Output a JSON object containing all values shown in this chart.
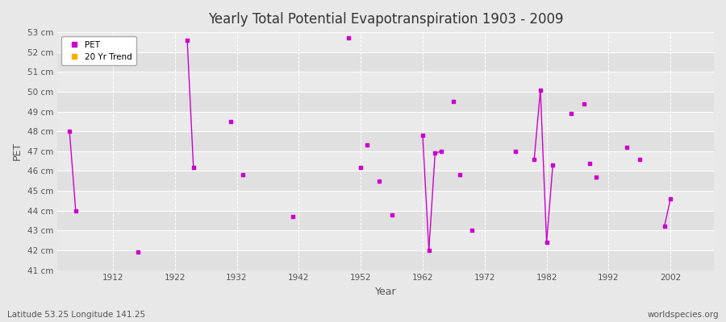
{
  "title": "Yearly Total Potential Evapotranspiration 1903 - 2009",
  "xlabel": "Year",
  "ylabel": "PET",
  "xlim": [
    1903,
    2009
  ],
  "ylim": [
    41,
    53
  ],
  "ytick_labels": [
    "41 cm",
    "42 cm",
    "43 cm",
    "44 cm",
    "45 cm",
    "46 cm",
    "47 cm",
    "48 cm",
    "49 cm",
    "50 cm",
    "51 cm",
    "52 cm",
    "53 cm"
  ],
  "ytick_values": [
    41,
    42,
    43,
    44,
    45,
    46,
    47,
    48,
    49,
    50,
    51,
    52,
    53
  ],
  "xtick_values": [
    1912,
    1922,
    1932,
    1942,
    1952,
    1962,
    1972,
    1982,
    1992,
    2002
  ],
  "pet_color": "#cc00cc",
  "trend_color": "#ffaa00",
  "bg_light": "#e8e8e8",
  "bg_dark": "#d8d8d8",
  "grid_vline_color": "#cccccc",
  "subtitle_left": "Latitude 53.25 Longitude 141.25",
  "subtitle_right": "worldspecies.org",
  "pet_data": [
    [
      1905,
      48.0
    ],
    [
      1906,
      44.0
    ],
    [
      1916,
      41.9
    ],
    [
      1924,
      52.6
    ],
    [
      1925,
      46.2
    ],
    [
      1931,
      48.5
    ],
    [
      1933,
      45.8
    ],
    [
      1941,
      43.7
    ],
    [
      1950,
      52.7
    ],
    [
      1952,
      46.2
    ],
    [
      1953,
      47.3
    ],
    [
      1955,
      45.5
    ],
    [
      1957,
      43.8
    ],
    [
      1962,
      47.8
    ],
    [
      1963,
      42.0
    ],
    [
      1964,
      46.9
    ],
    [
      1965,
      47.0
    ],
    [
      1967,
      49.5
    ],
    [
      1968,
      45.8
    ],
    [
      1970,
      43.0
    ],
    [
      1977,
      47.0
    ],
    [
      1980,
      46.6
    ],
    [
      1981,
      50.1
    ],
    [
      1982,
      42.4
    ],
    [
      1983,
      46.3
    ],
    [
      1986,
      48.9
    ],
    [
      1988,
      49.4
    ],
    [
      1989,
      46.4
    ],
    [
      1990,
      45.7
    ],
    [
      1995,
      47.2
    ],
    [
      1997,
      46.6
    ],
    [
      2001,
      43.2
    ],
    [
      2002,
      44.6
    ]
  ],
  "connected_segments": [
    [
      [
        1905,
        48.0
      ],
      [
        1906,
        44.0
      ]
    ],
    [
      [
        1924,
        52.6
      ],
      [
        1925,
        46.2
      ]
    ],
    [
      [
        1962,
        47.8
      ],
      [
        1963,
        42.0
      ]
    ],
    [
      [
        1963,
        42.0
      ],
      [
        1964,
        46.9
      ]
    ],
    [
      [
        1964,
        46.9
      ],
      [
        1965,
        47.0
      ]
    ],
    [
      [
        1980,
        46.6
      ],
      [
        1981,
        50.1
      ]
    ],
    [
      [
        1981,
        50.1
      ],
      [
        1982,
        42.4
      ]
    ],
    [
      [
        1982,
        42.4
      ],
      [
        1983,
        46.3
      ]
    ],
    [
      [
        2001,
        43.2
      ],
      [
        2002,
        44.6
      ]
    ]
  ]
}
